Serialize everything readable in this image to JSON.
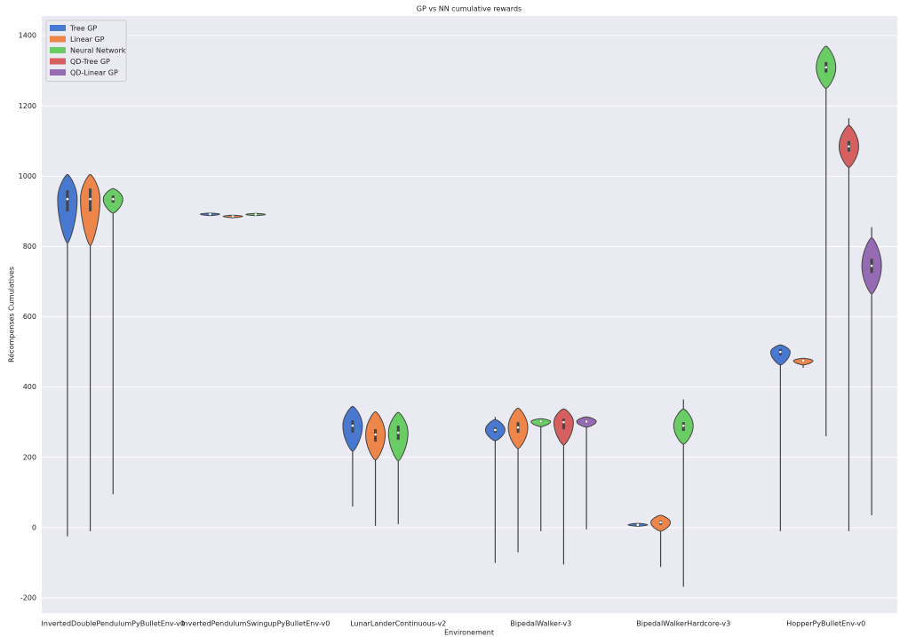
{
  "chart_data": {
    "type": "violin",
    "title": "GP vs NN cumulative rewards",
    "x_label": "Environement",
    "y_label": "Récompenses Cumulatives",
    "categories": [
      "InvertedDoublePendulumPyBulletEnv-v0",
      "InvertedPendulumSwingupPyBulletEnv-v0",
      "LunarLanderContinuous-v2",
      "BipedalWalker-v3",
      "BipedalWalkerHardcore-v3",
      "HopperPyBulletEnv-v0"
    ],
    "ylim": [
      -243,
      1456
    ],
    "yticks": [
      -200,
      0,
      200,
      400,
      600,
      800,
      1000,
      1200,
      1400
    ],
    "grid": true,
    "legend": "upper left",
    "series": [
      {
        "name": "Tree GP",
        "color": "#4878d0",
        "min": [
          -25,
          888,
          60,
          -100,
          3,
          -10
        ],
        "q1": [
          900,
          891,
          270,
          270,
          7,
          490
        ],
        "median": [
          935,
          892,
          290,
          278,
          8,
          500
        ],
        "q3": [
          960,
          893,
          305,
          285,
          9,
          508
        ],
        "max": [
          1005,
          895,
          345,
          315,
          12,
          520
        ]
      },
      {
        "name": "Linear GP",
        "color": "#ee854a",
        "min": [
          -10,
          880,
          5,
          -70,
          -112,
          455
        ],
        "q1": [
          900,
          885,
          245,
          270,
          8,
          472
        ],
        "median": [
          935,
          886,
          265,
          285,
          15,
          475
        ],
        "q3": [
          965,
          887,
          280,
          300,
          20,
          478
        ],
        "max": [
          1005,
          889,
          330,
          340,
          35,
          482
        ]
      },
      {
        "name": "Neural Network",
        "color": "#6acc64",
        "min": [
          95,
          888,
          10,
          -10,
          -168,
          260
        ],
        "q1": [
          925,
          890,
          250,
          298,
          275,
          1295
        ],
        "median": [
          935,
          891,
          270,
          302,
          290,
          1310
        ],
        "q3": [
          945,
          892,
          290,
          305,
          300,
          1325
        ],
        "max": [
          965,
          894,
          328,
          310,
          365,
          1370
        ]
      },
      {
        "name": "QD-Tree GP",
        "color": "#d65f5f",
        "min": [
          null,
          null,
          null,
          -105,
          null,
          -10
        ],
        "q1": [
          null,
          null,
          null,
          280,
          null,
          1070
        ],
        "median": [
          null,
          null,
          null,
          300,
          null,
          1085
        ],
        "q3": [
          null,
          null,
          null,
          310,
          null,
          1100
        ],
        "max": [
          null,
          null,
          null,
          338,
          null,
          1165
        ]
      },
      {
        "name": "QD-Linear GP",
        "color": "#956cb4",
        "min": [
          null,
          null,
          null,
          -5,
          null,
          35
        ],
        "q1": [
          null,
          null,
          null,
          298,
          null,
          725
        ],
        "median": [
          null,
          null,
          null,
          302,
          null,
          745
        ],
        "q3": [
          null,
          null,
          null,
          306,
          null,
          765
        ],
        "max": [
          null,
          null,
          null,
          315,
          null,
          855
        ]
      }
    ]
  }
}
